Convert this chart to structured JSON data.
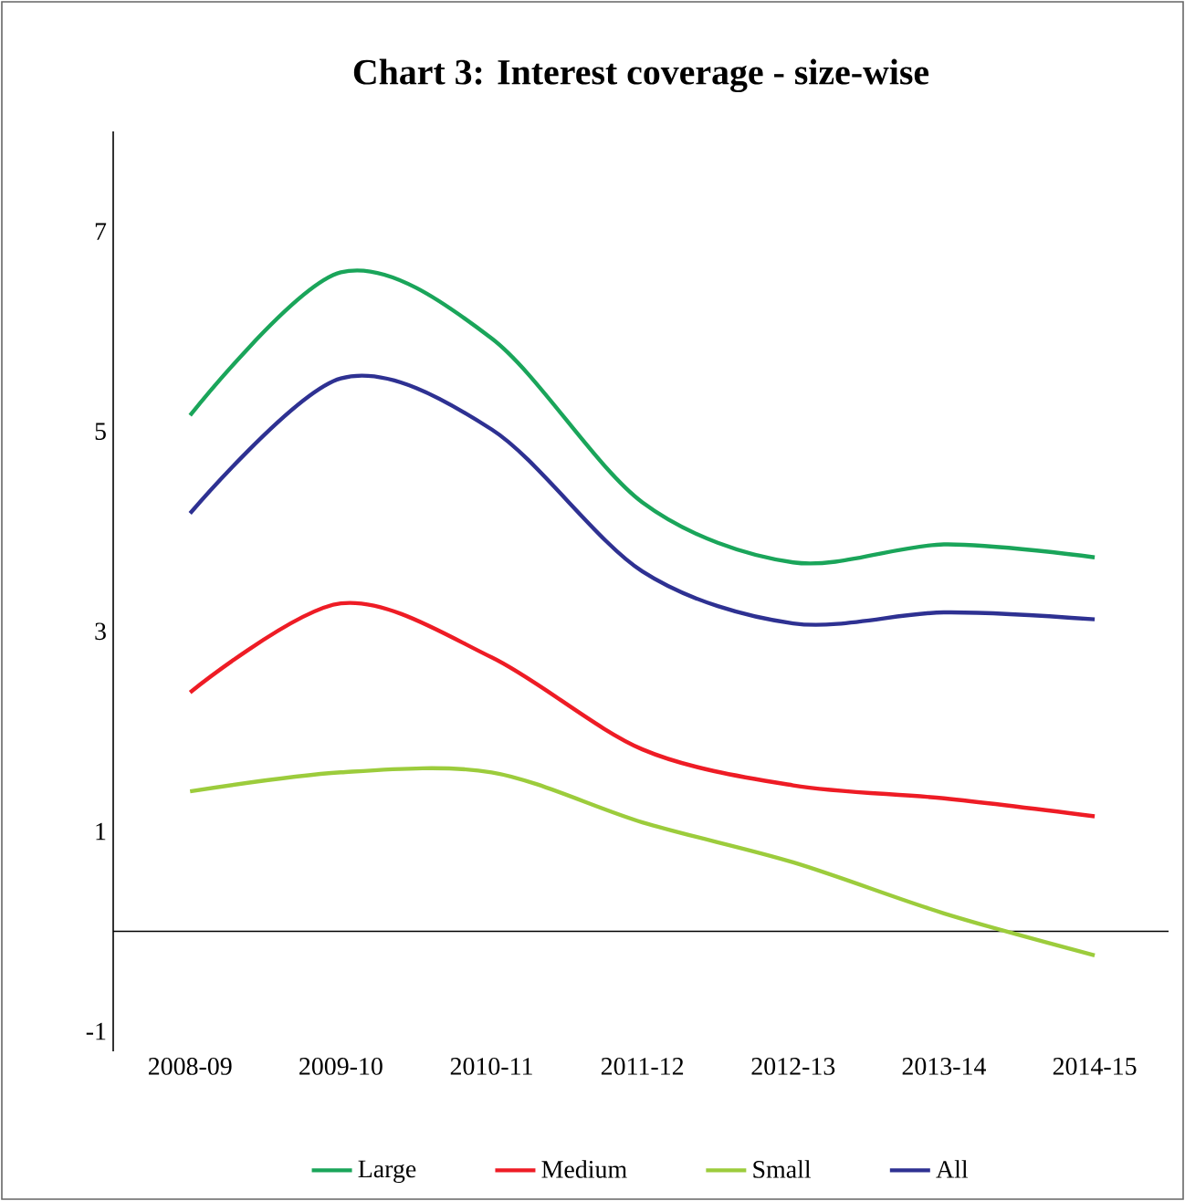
{
  "chart_data": {
    "type": "line",
    "title": "Chart 3: Interest coverage - size-wise",
    "categories": [
      "2008-09",
      "2009-10",
      "2010-11",
      "2011-12",
      "2012-13",
      "2013-14",
      "2014-15"
    ],
    "series": [
      {
        "name": "Large",
        "color": "#1aa55a",
        "values": [
          5.16,
          6.59,
          5.93,
          4.29,
          3.69,
          3.87,
          3.74
        ]
      },
      {
        "name": "Medium",
        "color": "#ee1c25",
        "values": [
          2.39,
          3.28,
          2.74,
          1.82,
          1.46,
          1.33,
          1.15
        ]
      },
      {
        "name": "Small",
        "color": "#9ccc3c",
        "values": [
          1.4,
          1.59,
          1.59,
          1.09,
          0.69,
          0.18,
          -0.24
        ]
      },
      {
        "name": "All",
        "color": "#2e3192",
        "values": [
          4.18,
          5.53,
          5.02,
          3.6,
          3.08,
          3.19,
          3.12
        ]
      }
    ],
    "ylim": [
      -1.2,
      8
    ],
    "yticks": [
      -1,
      1,
      3,
      5,
      7
    ],
    "legend": "bottom",
    "grid": false,
    "marker": "none",
    "line_style": "solid"
  }
}
